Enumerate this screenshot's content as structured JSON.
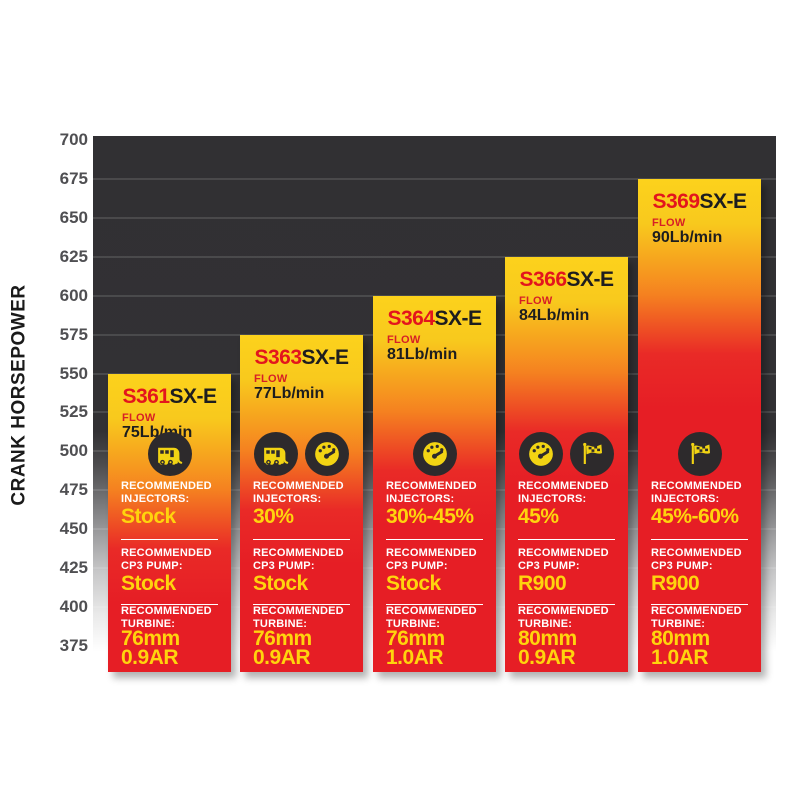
{
  "colors": {
    "bar_yellow": "#fcd21c",
    "bar_orange": "#f58220",
    "bar_red": "#e61e25",
    "model_red": "#e3151d",
    "value_yellow": "#ffd40d",
    "flow_red": "#d71f26",
    "plot_dark": "#313033",
    "axis_text": "#4f4f52",
    "icon_bg": "#2d2a2c",
    "icon_glyph": "#f2d413"
  },
  "chart_data": {
    "type": "bar",
    "title": "",
    "xlabel": "",
    "ylabel": "CRANK HORSEPOWER",
    "ylim": [
      375,
      700
    ],
    "yticks": [
      700,
      675,
      650,
      625,
      600,
      575,
      550,
      525,
      500,
      475,
      450,
      425,
      400,
      375
    ],
    "grid": "horizontal",
    "legend": "none",
    "section_labels": {
      "flow": "FLOW",
      "injectors": "RECOMMENDED INJECTORS:",
      "cp3": "RECOMMENDED CP3 PUMP:",
      "turbine": "RECOMMENDED TURBINE:"
    },
    "bars": [
      {
        "model": "S361",
        "suffix": "SX-E",
        "crank_hp": 550,
        "flow": "75Lb/min",
        "icons": [
          "camper"
        ],
        "injectors": "Stock",
        "cp3_pump": "Stock",
        "turbine": "76mm\n0.9AR"
      },
      {
        "model": "S363",
        "suffix": "SX-E",
        "crank_hp": 575,
        "flow": "77Lb/min",
        "icons": [
          "camper",
          "gauge"
        ],
        "injectors": "30%",
        "cp3_pump": "Stock",
        "turbine": "76mm\n0.9AR"
      },
      {
        "model": "S364",
        "suffix": "SX-E",
        "crank_hp": 600,
        "flow": "81Lb/min",
        "icons": [
          "gauge"
        ],
        "injectors": "30%-45%",
        "cp3_pump": "Stock",
        "turbine": "76mm\n1.0AR"
      },
      {
        "model": "S366",
        "suffix": "SX-E",
        "crank_hp": 625,
        "flow": "84Lb/min",
        "icons": [
          "gauge",
          "flag"
        ],
        "injectors": "45%",
        "cp3_pump": "R900",
        "turbine": "80mm\n0.9AR"
      },
      {
        "model": "S369",
        "suffix": "SX-E",
        "crank_hp": 675,
        "flow": "90Lb/min",
        "icons": [
          "flag"
        ],
        "injectors": "45%-60%",
        "cp3_pump": "R900",
        "turbine": "80mm\n1.0AR"
      }
    ]
  }
}
